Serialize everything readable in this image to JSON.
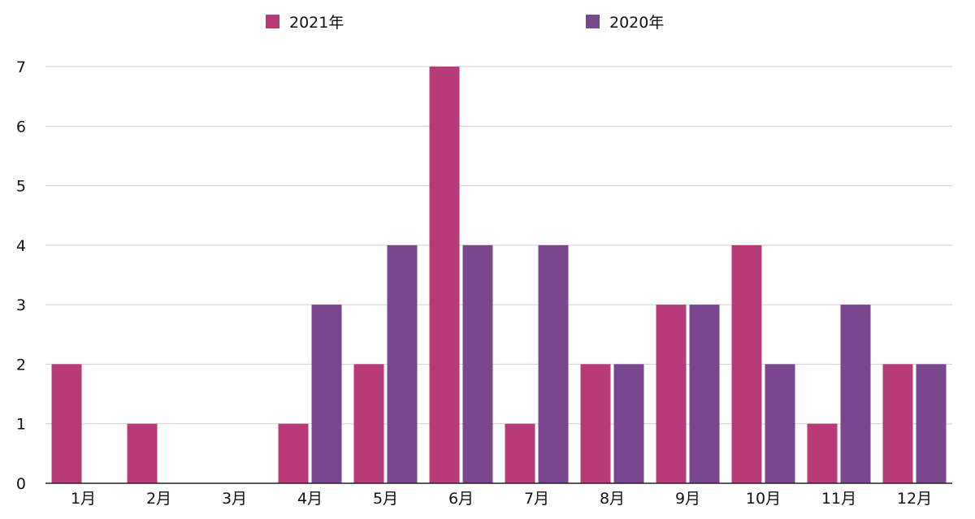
{
  "chart_data": {
    "type": "bar",
    "title": "",
    "xlabel": "",
    "ylabel": "",
    "ylim": [
      0,
      7
    ],
    "yticks": [
      0,
      1,
      2,
      3,
      4,
      5,
      6,
      7
    ],
    "grid": true,
    "legend_position": "top",
    "categories": [
      "1月",
      "2月",
      "3月",
      "4月",
      "5月",
      "6月",
      "7月",
      "8月",
      "9月",
      "10月",
      "11月",
      "12月"
    ],
    "series": [
      {
        "name": "2021年",
        "color": "#b83a78",
        "values": [
          2,
          1,
          0,
          1,
          2,
          7,
          1,
          2,
          3,
          4,
          1,
          2
        ]
      },
      {
        "name": "2020年",
        "color": "#7a468d",
        "values": [
          0,
          0,
          0,
          3,
          4,
          4,
          4,
          2,
          3,
          2,
          3,
          2
        ]
      }
    ]
  }
}
